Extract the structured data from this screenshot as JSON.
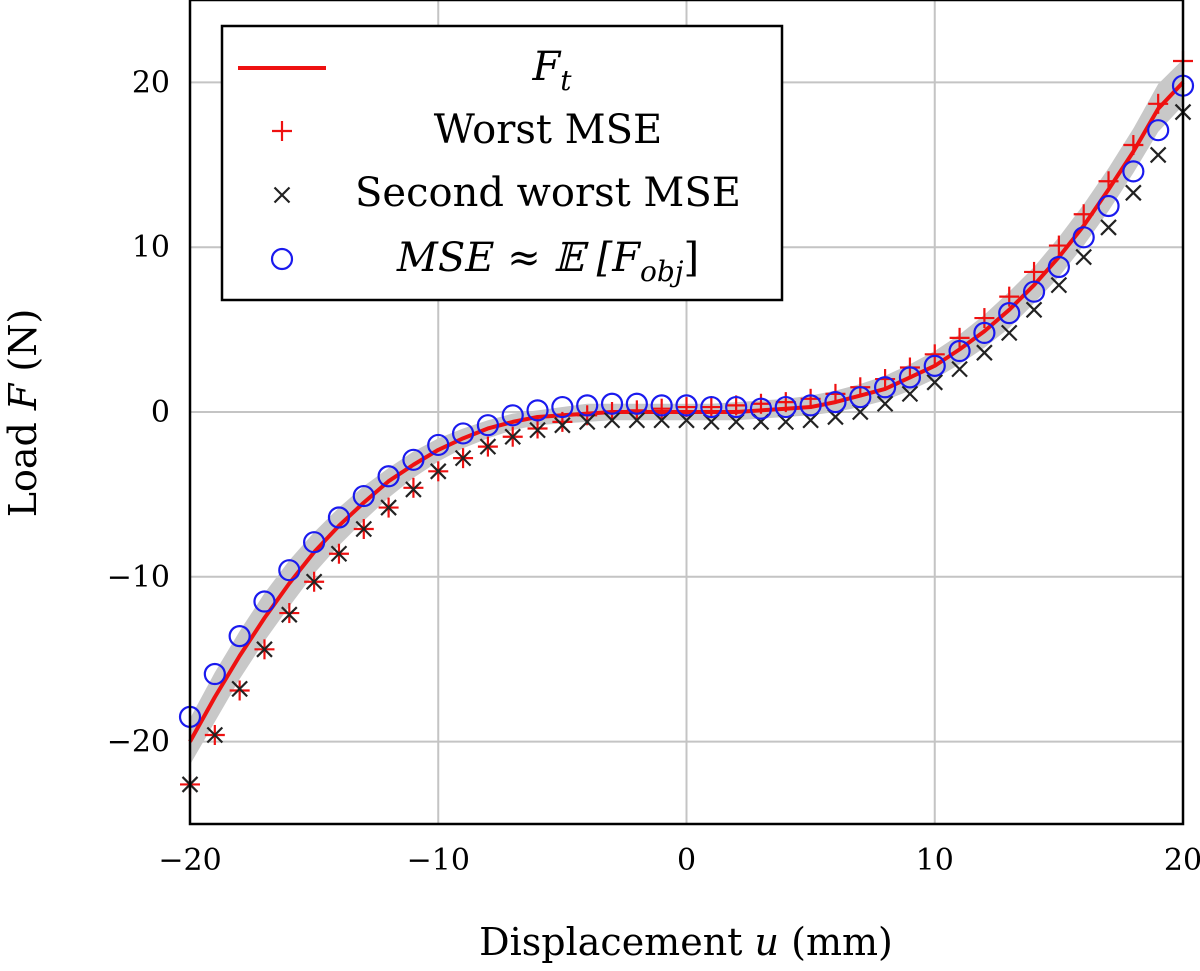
{
  "chart_data": {
    "type": "line",
    "xlabel": "Displacement",
    "xlabel_var": "u",
    "xlabel_unit": "(mm)",
    "ylabel": "Load",
    "ylabel_var": "F",
    "ylabel_unit": "(N)",
    "xlim": [
      -20,
      20
    ],
    "ylim": [
      -25,
      25
    ],
    "xticks": [
      -20,
      -10,
      0,
      10,
      20
    ],
    "yticks": [
      -20,
      -10,
      0,
      10,
      20
    ],
    "xtick_labels": [
      "−20",
      "−10",
      "0",
      "10",
      "20"
    ],
    "ytick_labels": [
      "−20",
      "−10",
      "0",
      "10",
      "20"
    ],
    "grid": true,
    "legend_position": "top-left",
    "band": {
      "color": "#c8c8c8",
      "x": [
        -20,
        -19,
        -18,
        -17,
        -16,
        -15,
        -14,
        -13,
        -12,
        -11,
        -10,
        -9,
        -8,
        -7,
        -6,
        -5,
        -4,
        -3,
        -2,
        -1,
        0,
        1,
        2,
        3,
        4,
        5,
        6,
        7,
        8,
        9,
        10,
        11,
        12,
        13,
        14,
        15,
        16,
        17,
        18,
        19,
        20
      ],
      "lower": [
        -21.4,
        -18.8,
        -16.2,
        -13.9,
        -11.8,
        -9.8,
        -8.1,
        -6.6,
        -5.2,
        -4.0,
        -3.0,
        -2.2,
        -1.6,
        -1.1,
        -0.8,
        -0.7,
        -0.6,
        -0.5,
        -0.5,
        -0.5,
        -0.5,
        -0.5,
        -0.5,
        -0.4,
        -0.3,
        -0.2,
        0.0,
        0.3,
        0.7,
        1.3,
        2.0,
        2.9,
        3.9,
        5.1,
        6.6,
        8.2,
        10.1,
        12.2,
        14.5,
        17.0,
        18.6
      ],
      "upper": [
        -18.6,
        -15.8,
        -13.3,
        -11.0,
        -9.0,
        -7.3,
        -5.8,
        -4.5,
        -3.4,
        -2.4,
        -1.6,
        -1.0,
        -0.5,
        -0.1,
        0.1,
        0.3,
        0.5,
        0.5,
        0.5,
        0.5,
        0.5,
        0.5,
        0.6,
        0.7,
        0.8,
        1.0,
        1.3,
        1.7,
        2.2,
        2.9,
        3.7,
        4.7,
        5.9,
        7.3,
        8.8,
        10.6,
        12.6,
        14.8,
        17.2,
        19.9,
        21.4
      ]
    },
    "series": [
      {
        "name": "F_t",
        "marker": "line",
        "color": "#ee1111",
        "x": [
          -20,
          -19,
          -18,
          -17,
          -16,
          -15,
          -14,
          -13,
          -12,
          -11,
          -10,
          -9,
          -8,
          -7,
          -6,
          -5,
          -4,
          -3,
          -2,
          -1,
          0,
          1,
          2,
          3,
          4,
          5,
          6,
          7,
          8,
          9,
          10,
          11,
          12,
          13,
          14,
          15,
          16,
          17,
          18,
          19,
          20
        ],
        "y": [
          -20.0,
          -17.3,
          -14.8,
          -12.5,
          -10.4,
          -8.5,
          -6.9,
          -5.5,
          -4.2,
          -3.2,
          -2.3,
          -1.6,
          -1.0,
          -0.6,
          -0.3,
          -0.2,
          -0.1,
          0.0,
          0.0,
          0.0,
          0.0,
          0.0,
          0.0,
          0.1,
          0.2,
          0.3,
          0.6,
          1.0,
          1.4,
          2.1,
          2.8,
          3.8,
          4.9,
          6.2,
          7.7,
          9.4,
          11.3,
          13.5,
          15.8,
          18.4,
          20.0
        ]
      },
      {
        "name": "Worst MSE",
        "marker": "plus",
        "color": "#ee1111",
        "x": [
          -20,
          -19,
          -18,
          -17,
          -16,
          -15,
          -14,
          -13,
          -12,
          -11,
          -10,
          -9,
          -8,
          -7,
          -6,
          -5,
          -4,
          -3,
          -2,
          -1,
          0,
          1,
          2,
          3,
          4,
          5,
          6,
          7,
          8,
          9,
          10,
          11,
          12,
          13,
          14,
          15,
          16,
          17,
          18,
          19,
          20
        ],
        "y": [
          -22.6,
          -19.6,
          -16.9,
          -14.4,
          -12.2,
          -10.3,
          -8.6,
          -7.1,
          -5.8,
          -4.6,
          -3.6,
          -2.8,
          -2.1,
          -1.5,
          -1.0,
          -0.6,
          -0.2,
          0.0,
          0.1,
          0.2,
          0.3,
          0.3,
          0.4,
          0.5,
          0.6,
          0.8,
          1.1,
          1.5,
          2.0,
          2.7,
          3.5,
          4.5,
          5.7,
          7.0,
          8.5,
          10.1,
          12.0,
          14.0,
          16.2,
          18.7,
          21.3
        ]
      },
      {
        "name": "Second worst MSE",
        "marker": "cross",
        "color": "#222222",
        "x": [
          -20,
          -19,
          -18,
          -17,
          -16,
          -15,
          -14,
          -13,
          -12,
          -11,
          -10,
          -9,
          -8,
          -7,
          -6,
          -5,
          -4,
          -3,
          -2,
          -1,
          0,
          1,
          2,
          3,
          4,
          5,
          6,
          7,
          8,
          9,
          10,
          11,
          12,
          13,
          14,
          15,
          16,
          17,
          18,
          19,
          20
        ],
        "y": [
          -22.6,
          -19.6,
          -16.8,
          -14.4,
          -12.3,
          -10.3,
          -8.6,
          -7.1,
          -5.8,
          -4.7,
          -3.6,
          -2.8,
          -2.1,
          -1.5,
          -1.1,
          -0.8,
          -0.6,
          -0.5,
          -0.5,
          -0.5,
          -0.5,
          -0.6,
          -0.6,
          -0.6,
          -0.6,
          -0.5,
          -0.3,
          0.0,
          0.5,
          1.1,
          1.8,
          2.6,
          3.6,
          4.8,
          6.2,
          7.7,
          9.4,
          11.2,
          13.3,
          15.6,
          18.2
        ]
      },
      {
        "name": "MSE ≈ E[F_obj]",
        "marker": "circle",
        "color": "#1a1aee",
        "x": [
          -20,
          -19,
          -18,
          -17,
          -16,
          -15,
          -14,
          -13,
          -12,
          -11,
          -10,
          -9,
          -8,
          -7,
          -6,
          -5,
          -4,
          -3,
          -2,
          -1,
          0,
          1,
          2,
          3,
          4,
          5,
          6,
          7,
          8,
          9,
          10,
          11,
          12,
          13,
          14,
          15,
          16,
          17,
          18,
          19,
          20
        ],
        "y": [
          -18.5,
          -15.9,
          -13.6,
          -11.5,
          -9.6,
          -7.9,
          -6.4,
          -5.1,
          -3.9,
          -2.9,
          -2.0,
          -1.3,
          -0.8,
          -0.2,
          0.1,
          0.3,
          0.4,
          0.5,
          0.5,
          0.4,
          0.4,
          0.3,
          0.3,
          0.2,
          0.3,
          0.4,
          0.6,
          0.9,
          1.5,
          2.1,
          2.8,
          3.7,
          4.8,
          6.0,
          7.3,
          8.8,
          10.6,
          12.5,
          14.6,
          17.1,
          19.8
        ]
      }
    ],
    "legend": [
      {
        "label": "F",
        "sub": "t"
      },
      {
        "label": "Worst MSE"
      },
      {
        "label": "Second worst MSE"
      },
      {
        "label": "MSE ≈ 𝔼 [F",
        "sub": "obj",
        "tail": "]"
      }
    ]
  }
}
